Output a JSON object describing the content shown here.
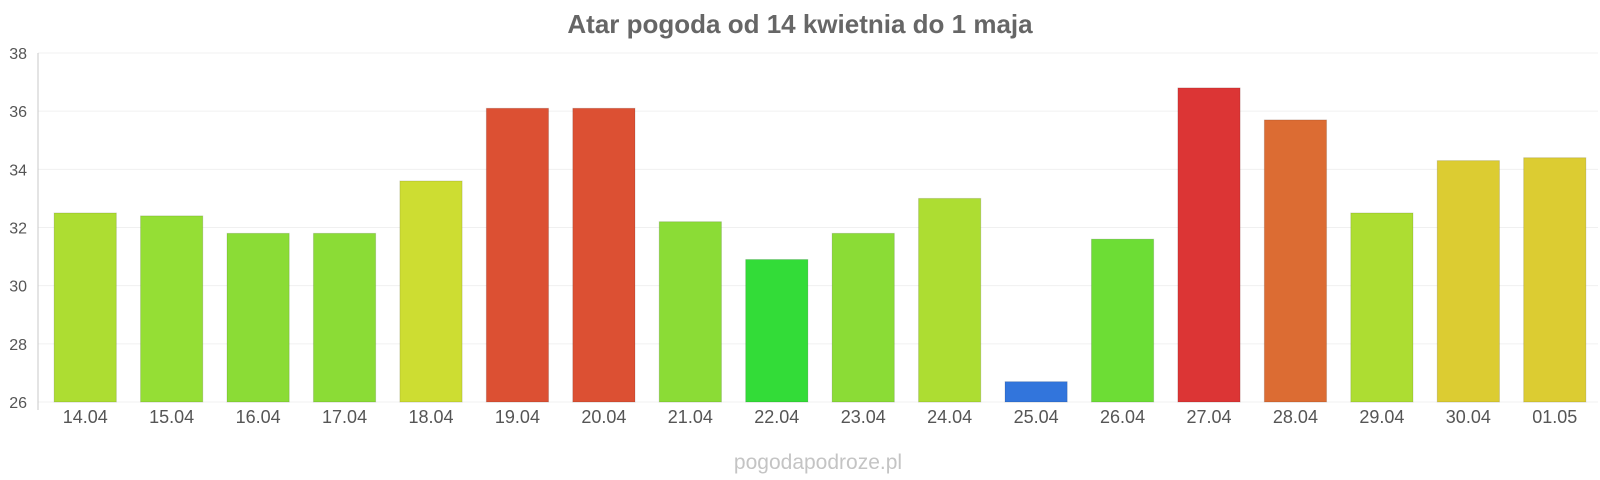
{
  "chart_data": {
    "type": "bar",
    "title": "Atar pogoda od 14 kwietnia do 1 maja",
    "xlabel": "",
    "ylabel": "",
    "ylim": [
      26,
      38
    ],
    "yticks": [
      "26",
      "28",
      "30",
      "32",
      "34",
      "36",
      "38"
    ],
    "grid": true,
    "categories": [
      "14.04",
      "15.04",
      "16.04",
      "17.04",
      "18.04",
      "19.04",
      "20.04",
      "21.04",
      "22.04",
      "23.04",
      "24.04",
      "25.04",
      "26.04",
      "27.04",
      "28.04",
      "29.04",
      "30.04",
      "01.05"
    ],
    "values": [
      32.5,
      32.4,
      31.8,
      31.8,
      33.6,
      36.1,
      36.1,
      32.2,
      30.9,
      31.8,
      33.0,
      26.7,
      31.6,
      36.8,
      35.7,
      32.5,
      34.3,
      34.4
    ],
    "colors": [
      "#addd32",
      "#95de35",
      "#8bdc36",
      "#8bdc36",
      "#cddd32",
      "#dc5033",
      "#dc5033",
      "#8bdc36",
      "#33dc38",
      "#8bdc36",
      "#addd32",
      "#3275dc",
      "#6ddd35",
      "#dc3535",
      "#dc6c33",
      "#addd32",
      "#dccc32",
      "#dccc32"
    ]
  },
  "footer": {
    "watermark": "pogodapodroze.pl"
  }
}
